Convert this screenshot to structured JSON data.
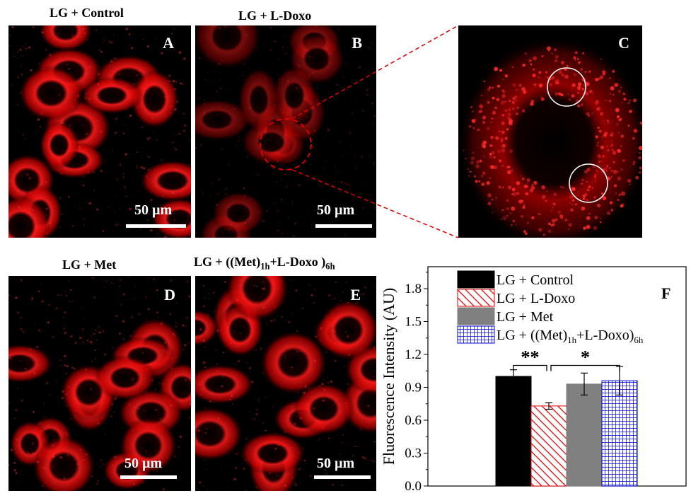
{
  "figure": {
    "panels": [
      {
        "id": "A",
        "title": "LG + Control",
        "label": "A",
        "scale": "50 µm"
      },
      {
        "id": "B",
        "title": "LG + L-Doxo",
        "label": "B",
        "scale": "50 µm"
      },
      {
        "id": "C",
        "title": "",
        "label": "C",
        "scale": ""
      },
      {
        "id": "D",
        "title": "LG + Met",
        "label": "D",
        "scale": "50 µm"
      },
      {
        "id": "E",
        "title_main": "LG + ((Met)",
        "title_sub1": "1h",
        "title_mid": "+L-Doxo )",
        "title_sub2": "6h",
        "label": "E",
        "scale": "50 µm"
      }
    ],
    "colors": {
      "fluor": "#ff1a1a",
      "zoom_line": "#e00000",
      "circle": "#ffffff"
    }
  },
  "chart_data": {
    "type": "bar",
    "panel_label": "F",
    "ylabel": "Fluorescence Intensity (AU)",
    "ylim": [
      0.0,
      2.0
    ],
    "yticks": [
      "0.0",
      "0.3",
      "0.6",
      "0.9",
      "1.2",
      "1.5",
      "1.8"
    ],
    "series": [
      {
        "name": "LG + Control",
        "value": 1.0,
        "error": 0.06,
        "pattern": "solid-black"
      },
      {
        "name": "LG + L-Doxo",
        "value": 0.73,
        "error": 0.03,
        "pattern": "red-diagonal"
      },
      {
        "name": "LG + Met",
        "value": 0.93,
        "error": 0.1,
        "pattern": "solid-gray"
      },
      {
        "name_main": "LG + ((Met)",
        "name_sub1": "1h",
        "name_mid": "+L-Doxo)",
        "name_sub2": "6h",
        "value": 0.96,
        "error": 0.13,
        "pattern": "blue-grid"
      }
    ],
    "significance": [
      {
        "between": [
          0,
          1
        ],
        "label": "**"
      },
      {
        "between": [
          1,
          3
        ],
        "label": "*"
      }
    ],
    "legend_position": "top-left"
  }
}
